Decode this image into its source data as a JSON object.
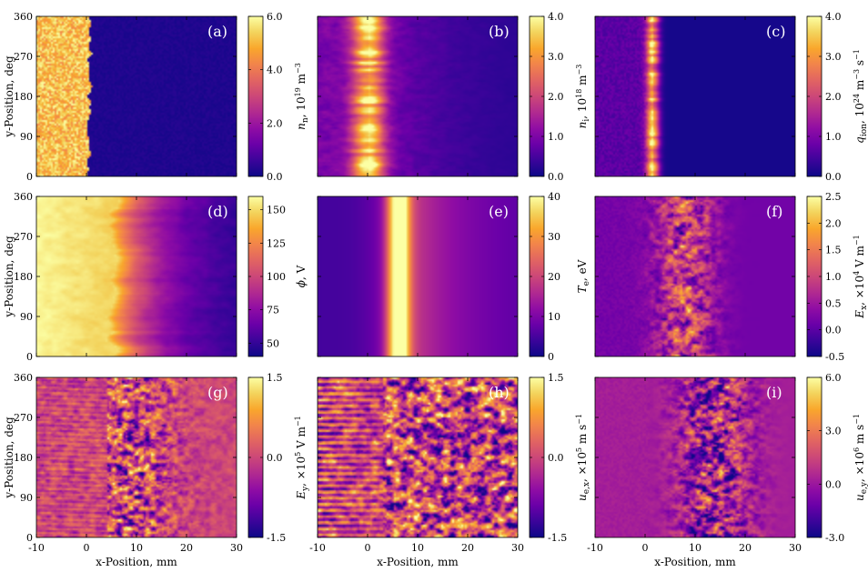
{
  "colormap_stops": [
    "#0d0887",
    "#3b049a",
    "#6a00a8",
    "#900da4",
    "#b12a90",
    "#cc4778",
    "#e16462",
    "#f2844b",
    "#f9a72c",
    "#f3d35c",
    "#fcffa4"
  ],
  "chart_data": [
    {
      "type": "heatmap",
      "panel": "(a)",
      "pattern": "step_left",
      "edge": 0.5,
      "noise": 0.25,
      "xlim": [
        -10,
        30
      ],
      "ylim": [
        0,
        360
      ],
      "x_ticks": [],
      "y_ticks": [
        "0",
        "90",
        "180",
        "270",
        "360"
      ],
      "xlabel": "",
      "ylabel": "y-Position, deg",
      "colorbar": {
        "label": "n_n, 10^19 m^-3",
        "label_main": "n",
        "label_sub": "n",
        "label_rest": ", 10",
        "label_sup": "19",
        "label_tail": " m",
        "label_sup2": "−3",
        "range": [
          0.0,
          6.0
        ],
        "ticks": [
          "0.0",
          "2.0",
          "4.0",
          "6.0"
        ],
        "tick_values": [
          0,
          2,
          4,
          6
        ]
      }
    },
    {
      "type": "heatmap",
      "panel": "(b)",
      "pattern": "band_streaks",
      "center": 0.0,
      "noise": 0.35,
      "xlim": [
        -10,
        30
      ],
      "ylim": [
        0,
        360
      ],
      "x_ticks": [],
      "y_ticks": [],
      "xlabel": "",
      "ylabel": "",
      "colorbar": {
        "label": "n_i, 10^18 m^-3",
        "label_main": "n",
        "label_sub": "i",
        "label_rest": ", 10",
        "label_sup": "18",
        "label_tail": " m",
        "label_sup2": "−3",
        "range": [
          0.0,
          4.0
        ],
        "ticks": [
          "0.0",
          "1.0",
          "2.0",
          "3.0",
          "4.0"
        ],
        "tick_values": [
          0,
          1,
          2,
          3,
          4
        ]
      }
    },
    {
      "type": "heatmap",
      "panel": "(c)",
      "pattern": "narrow_band",
      "center": 1.5,
      "noise": 0.3,
      "xlim": [
        -10,
        30
      ],
      "ylim": [
        0,
        360
      ],
      "x_ticks": [],
      "y_ticks": [],
      "xlabel": "",
      "ylabel": "",
      "colorbar": {
        "label": "q_ion, 10^24 m^-3 s^-1",
        "label_main": "q",
        "label_sub": "ion",
        "label_rest": ", 10",
        "label_sup": "24",
        "label_tail": " m",
        "label_sup2": "−3",
        "label_tail2": " s",
        "label_sup3": "−1",
        "range": [
          0.0,
          4.0
        ],
        "ticks": [
          "0.0",
          "1.0",
          "2.0",
          "3.0",
          "4.0"
        ],
        "tick_values": [
          0,
          1,
          2,
          3,
          4
        ]
      }
    },
    {
      "type": "heatmap",
      "panel": "(d)",
      "pattern": "gradient",
      "edge": 5,
      "noise": 0.08,
      "xlim": [
        -10,
        30
      ],
      "ylim": [
        0,
        360
      ],
      "x_ticks": [],
      "y_ticks": [
        "0",
        "90",
        "180",
        "270",
        "360"
      ],
      "xlabel": "",
      "ylabel": "y-Position, deg",
      "colorbar": {
        "label": "ϕ, V",
        "label_main": "ϕ",
        "label_sub": "",
        "label_rest": ", V",
        "label_sup": "",
        "label_tail": "",
        "label_sup2": "",
        "range": [
          40,
          160
        ],
        "ticks": [
          "50",
          "75",
          "100",
          "125",
          "150"
        ],
        "tick_values": [
          50,
          75,
          100,
          125,
          150
        ]
      }
    },
    {
      "type": "heatmap",
      "panel": "(e)",
      "pattern": "smooth_band",
      "center": 6,
      "noise": 0.0,
      "xlim": [
        -10,
        30
      ],
      "ylim": [
        0,
        360
      ],
      "x_ticks": [],
      "y_ticks": [],
      "xlabel": "",
      "ylabel": "",
      "colorbar": {
        "label": "T_e, eV",
        "label_main": "T",
        "label_sub": "e",
        "label_rest": ", eV",
        "label_sup": "",
        "label_tail": "",
        "label_sup2": "",
        "range": [
          0,
          40
        ],
        "ticks": [
          "0",
          "10",
          "20",
          "30",
          "40"
        ],
        "tick_values": [
          0,
          10,
          20,
          30,
          40
        ]
      }
    },
    {
      "type": "heatmap",
      "panel": "(f)",
      "pattern": "turbulent_field",
      "center": 8,
      "noise": 0.4,
      "xlim": [
        -10,
        30
      ],
      "ylim": [
        0,
        360
      ],
      "x_ticks": [],
      "y_ticks": [],
      "xlabel": "",
      "ylabel": "",
      "colorbar": {
        "label": "E_x, ×10^4 V m^-1",
        "label_main": "E",
        "label_sub": "x",
        "label_rest": ", ×10",
        "label_sup": "4",
        "label_tail": " V m",
        "label_sup2": "−1",
        "range": [
          -0.5,
          2.5
        ],
        "ticks": [
          "-0.5",
          "0.0",
          "0.5",
          "1.0",
          "1.5",
          "2.0",
          "2.5"
        ],
        "tick_values": [
          -0.5,
          0,
          0.5,
          1,
          1.5,
          2,
          2.5
        ]
      }
    },
    {
      "type": "heatmap",
      "panel": "(g)",
      "pattern": "turbulent_signed",
      "center": 8,
      "noise": 0.5,
      "xlim": [
        -10,
        30
      ],
      "ylim": [
        0,
        360
      ],
      "x_ticks": [
        "-10",
        "0",
        "10",
        "20",
        "30"
      ],
      "y_ticks": [
        "0",
        "90",
        "180",
        "270",
        "360"
      ],
      "xlabel": "x-Position, mm",
      "ylabel": "y-Position, deg",
      "colorbar": {
        "label": "E_y, ×10^5 V m^-1",
        "label_main": "E",
        "label_sub": "y",
        "label_rest": ", ×10",
        "label_sup": "5",
        "label_tail": " V m",
        "label_sup2": "−1",
        "range": [
          -1.5,
          1.5
        ],
        "ticks": [
          "-1.5",
          "0.0",
          "1.5"
        ],
        "tick_values": [
          -1.5,
          0,
          1.5
        ]
      }
    },
    {
      "type": "heatmap",
      "panel": "(h)",
      "pattern": "turbulent_signed_wide",
      "center": 12,
      "noise": 0.55,
      "xlim": [
        -10,
        30
      ],
      "ylim": [
        0,
        360
      ],
      "x_ticks": [
        "-10",
        "0",
        "10",
        "20",
        "30"
      ],
      "y_ticks": [],
      "xlabel": "x-Position, mm",
      "ylabel": "",
      "colorbar": {
        "label": "u_e,x, ×10^5 m s^-1",
        "label_main": "u",
        "label_sub": "e,x",
        "label_rest": ", ×10",
        "label_sup": "5",
        "label_tail": " m s",
        "label_sup2": "−1",
        "range": [
          -1.5,
          1.5
        ],
        "ticks": [
          "-1.5",
          "0.0",
          "1.5"
        ],
        "tick_values": [
          -1.5,
          0,
          1.5
        ]
      }
    },
    {
      "type": "heatmap",
      "panel": "(i)",
      "pattern": "turbulent_blobs",
      "center": 14,
      "noise": 0.5,
      "xlim": [
        -10,
        30
      ],
      "ylim": [
        0,
        360
      ],
      "x_ticks": [
        "-10",
        "0",
        "10",
        "20",
        "30"
      ],
      "y_ticks": [],
      "xlabel": "x-Position, mm",
      "ylabel": "",
      "colorbar": {
        "label": "u_e,y, ×10^6 m s^-1",
        "label_main": "u",
        "label_sub": "e,y",
        "label_rest": ", ×10",
        "label_sup": "6",
        "label_tail": " m s",
        "label_sup2": "−1",
        "range": [
          -3.0,
          6.0
        ],
        "ticks": [
          "-3.0",
          "0.0",
          "3.0",
          "6.0"
        ],
        "tick_values": [
          -3,
          0,
          3,
          6
        ]
      }
    }
  ]
}
